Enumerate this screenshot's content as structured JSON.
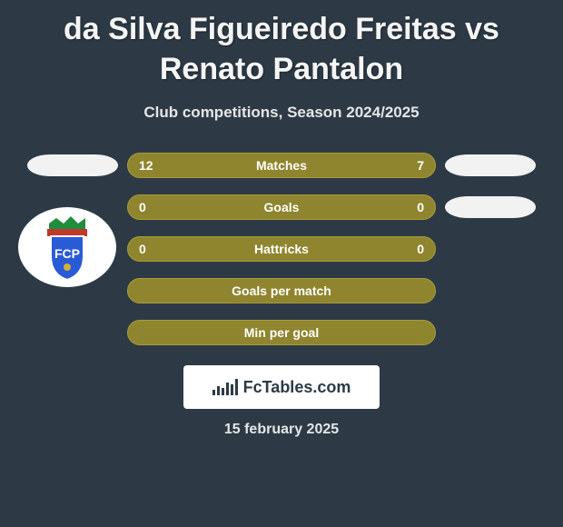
{
  "title": "da Silva Figueiredo Freitas vs Renato Pantalon",
  "subtitle": "Club competitions, Season 2024/2025",
  "date": "15 february 2025",
  "logo_text": "FcTables.com",
  "colors": {
    "card_bg": "#2d3a46",
    "bar_bg": "#8f852e",
    "bar_border": "#a79c3a",
    "pill_bg": "#f2f2f2",
    "text_light": "#e6e6e6",
    "title_color": "#f5f5f5"
  },
  "crest": {
    "shield_fill": "#2a5bd7",
    "shield_stroke": "#ffffff",
    "crown_fill": "#1e8e3e",
    "banner_fill": "#c0392b",
    "letters": "FCP"
  },
  "rows": [
    {
      "left_val": "12",
      "label": "Matches",
      "right_val": "7",
      "show_left_pill": true,
      "show_right_pill": true,
      "show_left_val": true,
      "show_right_val": true
    },
    {
      "left_val": "0",
      "label": "Goals",
      "right_val": "0",
      "show_left_pill": false,
      "show_right_pill": true,
      "show_left_val": true,
      "show_right_val": true
    },
    {
      "left_val": "0",
      "label": "Hattricks",
      "right_val": "0",
      "show_left_pill": false,
      "show_right_pill": false,
      "show_left_val": true,
      "show_right_val": true
    },
    {
      "left_val": "",
      "label": "Goals per match",
      "right_val": "",
      "show_left_pill": false,
      "show_right_pill": false,
      "show_left_val": false,
      "show_right_val": false
    },
    {
      "left_val": "",
      "label": "Min per goal",
      "right_val": "",
      "show_left_pill": false,
      "show_right_pill": false,
      "show_left_val": false,
      "show_right_val": false
    }
  ],
  "logo_bar_heights": [
    6,
    10,
    8,
    14,
    12,
    18
  ]
}
